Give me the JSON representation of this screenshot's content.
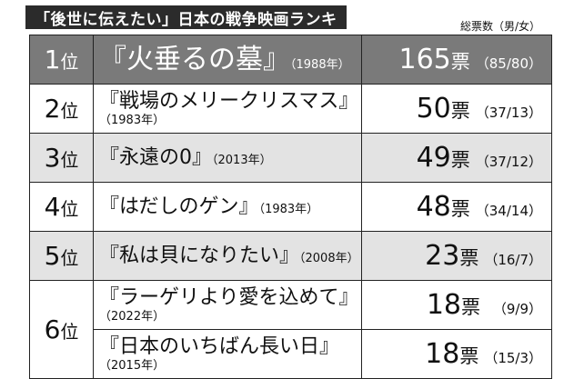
{
  "header": {
    "title": "「後世に伝えたい」日本の戦争映画ランキ",
    "legend": "総票数（男/女）"
  },
  "ranking": [
    {
      "rank": "1",
      "rank_suffix": "位",
      "title": "『火垂るの墓』",
      "year": "（1988年）",
      "votes": "165",
      "unit": "票",
      "split": "（85/80）"
    },
    {
      "rank": "2",
      "rank_suffix": "位",
      "title": "『戦場のメリークリスマス』",
      "year": "（1983年）",
      "votes": "50",
      "unit": "票",
      "split": "（37/13）"
    },
    {
      "rank": "3",
      "rank_suffix": "位",
      "title": "『永遠の0』",
      "year": "（2013年）",
      "votes": "49",
      "unit": "票",
      "split": "（37/12）"
    },
    {
      "rank": "4",
      "rank_suffix": "位",
      "title": "『はだしのゲン』",
      "year": "（1983年）",
      "votes": "48",
      "unit": "票",
      "split": "（34/14）"
    },
    {
      "rank": "5",
      "rank_suffix": "位",
      "title": "『私は貝になりたい』",
      "year": "（2008年）",
      "votes": "23",
      "unit": "票",
      "split": "（16/7）"
    },
    {
      "rank": "6",
      "rank_suffix": "位",
      "title": "『ラーゲリより愛を込めて』",
      "year": "（2022年）",
      "votes": "18",
      "unit": "票",
      "split": "（9/9）"
    },
    {
      "rank": "6",
      "rank_suffix": "位",
      "title": "『日本のいちばん長い日』",
      "year": "（2015年）",
      "votes": "18",
      "unit": "票",
      "split": "（15/3）"
    }
  ]
}
